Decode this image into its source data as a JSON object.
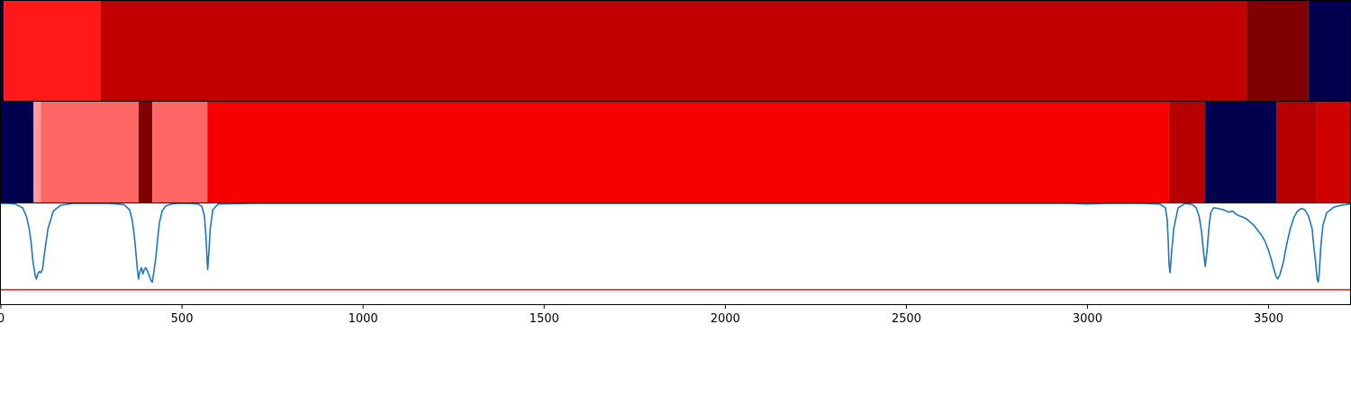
{
  "chart_data": [
    {
      "type": "heatmap",
      "panel": "top-segment-strip",
      "colormap": "seismic",
      "segments": [
        {
          "x0": 0,
          "x1": 8,
          "color": "#00004c"
        },
        {
          "x0": 8,
          "x1": 275,
          "color": "#ff1919"
        },
        {
          "x0": 275,
          "x1": 3440,
          "color": "#c20000"
        },
        {
          "x0": 3440,
          "x1": 3610,
          "color": "#800000"
        },
        {
          "x0": 3610,
          "x1": 3725,
          "color": "#00004c"
        }
      ]
    },
    {
      "type": "heatmap",
      "panel": "middle-segment-strip",
      "colormap": "seismic",
      "segments": [
        {
          "x0": 0,
          "x1": 90,
          "color": "#00004c"
        },
        {
          "x0": 90,
          "x1": 110,
          "color": "#ff9a9a"
        },
        {
          "x0": 110,
          "x1": 380,
          "color": "#ff6666"
        },
        {
          "x0": 380,
          "x1": 418,
          "color": "#800000"
        },
        {
          "x0": 418,
          "x1": 570,
          "color": "#ff6666"
        },
        {
          "x0": 570,
          "x1": 3225,
          "color": "#f60000"
        },
        {
          "x0": 3225,
          "x1": 3325,
          "color": "#b70000"
        },
        {
          "x0": 3325,
          "x1": 3522,
          "color": "#00004c"
        },
        {
          "x0": 3522,
          "x1": 3632,
          "color": "#b70000"
        },
        {
          "x0": 3632,
          "x1": 3725,
          "color": "#cf0000"
        }
      ]
    },
    {
      "type": "line",
      "panel": "spectrum",
      "xlim": [
        0,
        3725
      ],
      "ylim": [
        -0.6,
        1.0
      ],
      "x_ticks": [
        0,
        500,
        1000,
        1500,
        2000,
        2500,
        3000,
        3500
      ],
      "grid": false,
      "threshold_line": {
        "y": -0.37,
        "color": "#ee1111"
      },
      "series": [
        {
          "color": "#1f77b4",
          "x": [
            0,
            20,
            40,
            60,
            70,
            78,
            84,
            88,
            92,
            95,
            98,
            102,
            106,
            110,
            115,
            120,
            130,
            145,
            165,
            200,
            250,
            300,
            340,
            355,
            362,
            368,
            373,
            377,
            380,
            384,
            388,
            392,
            396,
            400,
            405,
            410,
            414,
            418,
            422,
            428,
            433,
            438,
            445,
            455,
            470,
            490,
            520,
            545,
            555,
            562,
            566,
            569,
            571,
            574,
            578,
            585,
            600,
            700,
            1000,
            1500,
            2000,
            2500,
            2950,
            3000,
            3050,
            3150,
            3200,
            3215,
            3220,
            3223,
            3225,
            3228,
            3232,
            3238,
            3250,
            3270,
            3290,
            3300,
            3308,
            3315,
            3320,
            3325,
            3330,
            3335,
            3340,
            3348,
            3360,
            3375,
            3390,
            3400,
            3410,
            3420,
            3430,
            3440,
            3450,
            3460,
            3470,
            3480,
            3490,
            3500,
            3508,
            3515,
            3520,
            3525,
            3530,
            3540,
            3550,
            3560,
            3570,
            3580,
            3590,
            3600,
            3610,
            3620,
            3625,
            3630,
            3634,
            3637,
            3640,
            3644,
            3650,
            3660,
            3680,
            3700,
            3725
          ],
          "y": [
            1.0,
            1.0,
            0.99,
            0.93,
            0.8,
            0.6,
            0.35,
            0.1,
            -0.05,
            -0.15,
            -0.2,
            -0.12,
            -0.08,
            -0.1,
            -0.05,
            0.2,
            0.6,
            0.88,
            0.97,
            1.0,
            1.0,
            1.0,
            0.98,
            0.9,
            0.75,
            0.5,
            0.2,
            -0.05,
            -0.2,
            -0.08,
            -0.02,
            -0.12,
            -0.05,
            -0.02,
            -0.08,
            -0.15,
            -0.22,
            -0.25,
            -0.1,
            0.15,
            0.45,
            0.7,
            0.88,
            0.96,
            0.99,
            1.0,
            1.0,
            0.99,
            0.95,
            0.8,
            0.5,
            0.15,
            -0.05,
            0.2,
            0.6,
            0.9,
            0.99,
            1.0,
            1.0,
            1.0,
            1.0,
            1.0,
            1.0,
            0.99,
            1.0,
            1.0,
            0.99,
            0.93,
            0.75,
            0.4,
            0.05,
            -0.1,
            0.2,
            0.6,
            0.93,
            1.0,
            0.98,
            0.93,
            0.8,
            0.55,
            0.25,
            0.0,
            0.25,
            0.6,
            0.85,
            0.93,
            0.92,
            0.9,
            0.86,
            0.88,
            0.83,
            0.8,
            0.78,
            0.75,
            0.7,
            0.65,
            0.57,
            0.5,
            0.4,
            0.25,
            0.1,
            -0.05,
            -0.15,
            -0.2,
            -0.15,
            0.05,
            0.35,
            0.6,
            0.78,
            0.88,
            0.92,
            0.9,
            0.8,
            0.6,
            0.3,
            0.05,
            -0.2,
            -0.25,
            -0.1,
            0.3,
            0.65,
            0.85,
            0.94,
            0.97,
            0.99
          ]
        }
      ]
    }
  ]
}
